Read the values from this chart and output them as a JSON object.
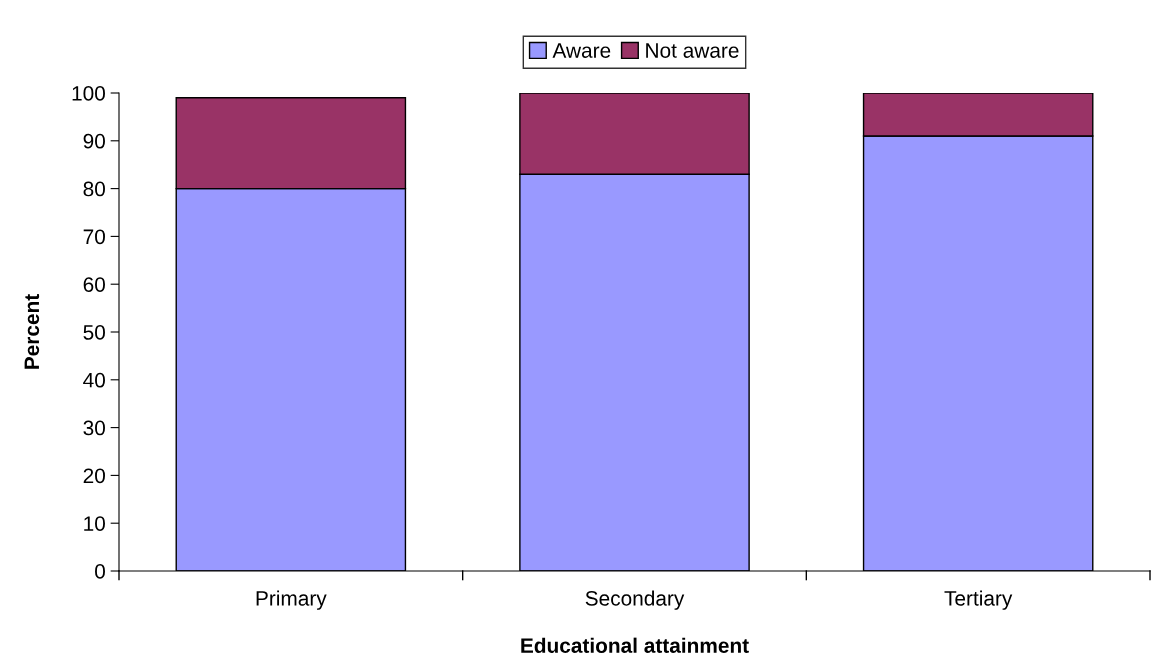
{
  "chart_data": {
    "type": "bar",
    "stacked": true,
    "xlabel": "Educational attainment",
    "ylabel": "Percent",
    "categories": [
      "Primary",
      "Secondary",
      "Tertiary"
    ],
    "series": [
      {
        "name": "Aware",
        "color": "#9999ff",
        "values": [
          80,
          83,
          91
        ]
      },
      {
        "name": "Not aware",
        "color": "#993366",
        "values": [
          19,
          17,
          9
        ]
      }
    ],
    "ylim": [
      0,
      100
    ],
    "yticks": [
      0,
      10,
      20,
      30,
      40,
      50,
      60,
      70,
      80,
      90,
      100
    ],
    "grid": false,
    "legend": "top"
  }
}
